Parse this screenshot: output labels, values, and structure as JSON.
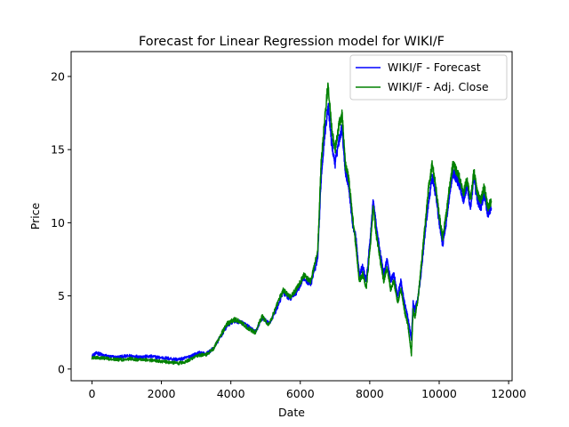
{
  "chart_data": {
    "type": "line",
    "title": "Forecast for Linear Regression model for WIKI/F",
    "xlabel": "Date",
    "ylabel": "Price",
    "xlim": [
      -600,
      12100
    ],
    "ylim": [
      -0.8,
      21.7
    ],
    "xticks": [
      0,
      2000,
      4000,
      6000,
      8000,
      10000,
      12000
    ],
    "yticks": [
      0,
      5,
      10,
      15,
      20
    ],
    "grid": false,
    "legend_position": "top-right",
    "series": [
      {
        "name": "WIKI/F - Forecast",
        "color": "#0000ff",
        "noise": 0.28,
        "x": [
          0,
          150,
          300,
          500,
          700,
          900,
          1100,
          1300,
          1500,
          1700,
          1900,
          2100,
          2300,
          2500,
          2700,
          2900,
          3100,
          3300,
          3500,
          3700,
          3900,
          4100,
          4300,
          4500,
          4700,
          4900,
          5100,
          5300,
          5500,
          5700,
          5900,
          6100,
          6300,
          6500,
          6600,
          6700,
          6800,
          6900,
          7000,
          7100,
          7200,
          7300,
          7400,
          7500,
          7600,
          7700,
          7800,
          7900,
          8000,
          8100,
          8200,
          8300,
          8400,
          8500,
          8600,
          8700,
          8800,
          8900,
          9000,
          9100,
          9200,
          9250,
          9300,
          9400,
          9500,
          9600,
          9700,
          9800,
          9900,
          10000,
          10100,
          10200,
          10300,
          10400,
          10500,
          10600,
          10700,
          10800,
          10900,
          11000,
          11100,
          11200,
          11300,
          11400,
          11500
        ],
        "y": [
          0.9,
          1.1,
          0.95,
          0.85,
          0.8,
          0.85,
          0.9,
          0.85,
          0.85,
          0.85,
          0.8,
          0.75,
          0.7,
          0.65,
          0.75,
          0.95,
          1.1,
          1.05,
          1.4,
          2.2,
          3.0,
          3.3,
          3.2,
          2.9,
          2.5,
          3.5,
          3.1,
          4.0,
          5.2,
          4.8,
          5.3,
          6.2,
          5.8,
          7.5,
          13.0,
          16.0,
          18.0,
          15.5,
          14.0,
          15.5,
          16.5,
          13.5,
          12.5,
          10.0,
          9.0,
          6.5,
          7.0,
          6.0,
          8.5,
          11.5,
          9.5,
          8.0,
          6.5,
          7.5,
          6.0,
          6.5,
          5.0,
          6.0,
          4.5,
          3.5,
          2.0,
          4.5,
          4.0,
          5.0,
          7.0,
          9.5,
          11.5,
          13.0,
          12.0,
          10.0,
          8.5,
          10.0,
          12.0,
          13.5,
          13.0,
          12.5,
          11.5,
          12.5,
          11.0,
          13.0,
          11.5,
          11.0,
          12.0,
          10.5,
          11.0
        ]
      },
      {
        "name": "WIKI/F - Adj. Close",
        "color": "#008000",
        "noise": 0.28,
        "x": [
          0,
          150,
          300,
          500,
          700,
          900,
          1100,
          1300,
          1500,
          1700,
          1900,
          2100,
          2300,
          2500,
          2700,
          2900,
          3100,
          3300,
          3500,
          3700,
          3900,
          4100,
          4300,
          4500,
          4700,
          4900,
          5100,
          5300,
          5500,
          5700,
          5900,
          6100,
          6300,
          6500,
          6600,
          6700,
          6800,
          6900,
          7000,
          7100,
          7200,
          7300,
          7400,
          7500,
          7600,
          7700,
          7800,
          7900,
          8000,
          8100,
          8200,
          8300,
          8400,
          8500,
          8600,
          8700,
          8800,
          8900,
          9000,
          9100,
          9200,
          9250,
          9300,
          9400,
          9500,
          9600,
          9700,
          9800,
          9900,
          10000,
          10100,
          10200,
          10300,
          10400,
          10500,
          10600,
          10700,
          10800,
          10900,
          11000,
          11100,
          11200,
          11300,
          11400,
          11500
        ],
        "y": [
          0.75,
          0.8,
          0.75,
          0.7,
          0.65,
          0.65,
          0.7,
          0.65,
          0.65,
          0.6,
          0.55,
          0.5,
          0.45,
          0.4,
          0.5,
          0.75,
          0.95,
          1.0,
          1.4,
          2.3,
          3.1,
          3.4,
          3.2,
          2.8,
          2.5,
          3.6,
          3.0,
          4.2,
          5.4,
          4.9,
          5.5,
          6.4,
          6.0,
          8.0,
          14.0,
          17.0,
          19.5,
          16.5,
          15.0,
          16.5,
          17.5,
          14.0,
          13.0,
          10.5,
          8.5,
          6.0,
          6.5,
          5.5,
          8.0,
          11.0,
          9.0,
          7.5,
          6.0,
          7.0,
          5.5,
          6.0,
          4.5,
          5.5,
          4.0,
          3.0,
          1.0,
          4.0,
          3.5,
          5.0,
          7.5,
          10.0,
          12.5,
          14.0,
          12.5,
          10.5,
          9.0,
          10.5,
          12.5,
          14.0,
          13.5,
          13.0,
          12.0,
          13.0,
          11.5,
          13.5,
          12.0,
          11.5,
          12.5,
          11.0,
          11.5
        ]
      }
    ]
  }
}
